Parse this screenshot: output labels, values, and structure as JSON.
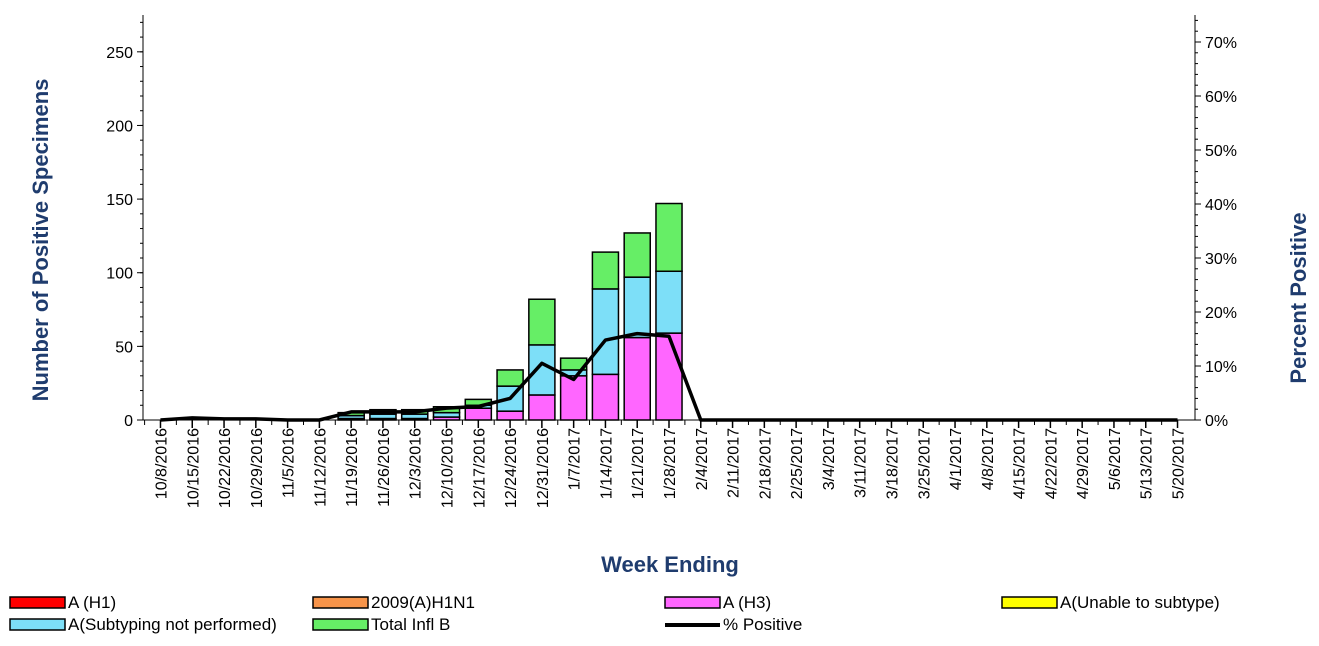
{
  "chart_data": {
    "type": "bar",
    "stacked": true,
    "xlabel": "Week Ending",
    "ylabel": "Number of  Positive Specimens",
    "y2label": "Percent Positive",
    "ylim": [
      0,
      275
    ],
    "yticks": [
      0,
      50,
      100,
      150,
      200,
      250
    ],
    "y2lim": [
      0,
      0.75
    ],
    "y2ticks": [
      "0%",
      "10%",
      "20%",
      "30%",
      "40%",
      "50%",
      "60%",
      "70%"
    ],
    "categories": [
      "10/8/2016",
      "10/15/2016",
      "10/22/2016",
      "10/29/2016",
      "11/5/2016",
      "11/12/2016",
      "11/19/2016",
      "11/26/2016",
      "12/3/2016",
      "12/10/2016",
      "12/17/2016",
      "12/24/2016",
      "12/31/2016",
      "1/7/2017",
      "1/14/2017",
      "1/21/2017",
      "1/28/2017",
      "2/4/2017",
      "2/11/2017",
      "2/18/2017",
      "2/25/2017",
      "3/4/2017",
      "3/11/2017",
      "3/18/2017",
      "3/25/2017",
      "4/1/2017",
      "4/8/2017",
      "4/15/2017",
      "4/22/2017",
      "4/29/2017",
      "5/6/2017",
      "5/13/2017",
      "5/20/2017"
    ],
    "series": [
      {
        "name": "A (H1)",
        "color": "#ff0000",
        "values": [
          0,
          0,
          0,
          0,
          0,
          0,
          0,
          0,
          0,
          0,
          0,
          0,
          0,
          0,
          0,
          0,
          0,
          null,
          null,
          null,
          null,
          null,
          null,
          null,
          null,
          null,
          null,
          null,
          null,
          null,
          null,
          null,
          null
        ]
      },
      {
        "name": "2009(A)H1N1",
        "color": "#f7944a",
        "values": [
          0,
          0,
          0,
          0,
          0,
          0,
          0,
          0,
          0,
          0,
          0,
          0,
          0,
          0,
          0,
          0,
          0,
          null,
          null,
          null,
          null,
          null,
          null,
          null,
          null,
          null,
          null,
          null,
          null,
          null,
          null,
          null,
          null
        ]
      },
      {
        "name": "A (H3)",
        "color": "#ff66ff",
        "values": [
          0,
          0,
          0,
          0,
          0,
          0,
          1,
          1,
          1,
          2,
          8,
          6,
          17,
          30,
          31,
          56,
          59,
          null,
          null,
          null,
          null,
          null,
          null,
          null,
          null,
          null,
          null,
          null,
          null,
          null,
          null,
          null,
          null
        ]
      },
      {
        "name": "A(Unable to subtype)",
        "color": "#ffff00",
        "values": [
          0,
          0,
          0,
          0,
          0,
          0,
          0,
          0,
          0,
          0,
          0,
          0,
          0,
          0,
          0,
          0,
          0,
          null,
          null,
          null,
          null,
          null,
          null,
          null,
          null,
          null,
          null,
          null,
          null,
          null,
          null,
          null,
          null
        ]
      },
      {
        "name": "A(Subtyping not performed)",
        "color": "#7ddff8",
        "values": [
          0,
          0,
          0,
          0,
          0,
          0,
          2,
          3,
          3,
          3,
          2,
          17,
          34,
          4,
          58,
          41,
          42,
          null,
          null,
          null,
          null,
          null,
          null,
          null,
          null,
          null,
          null,
          null,
          null,
          null,
          null,
          null,
          null
        ]
      },
      {
        "name": "Total Infl B",
        "color": "#66ee66",
        "values": [
          0,
          0,
          0,
          0,
          0,
          0,
          2,
          3,
          3,
          4,
          4,
          11,
          31,
          8,
          25,
          30,
          46,
          null,
          null,
          null,
          null,
          null,
          null,
          null,
          null,
          null,
          null,
          null,
          null,
          null,
          null,
          null,
          null
        ]
      }
    ],
    "line": {
      "name": "% Positive",
      "color": "#000000",
      "values": [
        0.0,
        0.004,
        0.002,
        0.002,
        0.0,
        0.0,
        0.015,
        0.015,
        0.015,
        0.022,
        0.025,
        0.04,
        0.105,
        0.075,
        0.148,
        0.16,
        0.155,
        0,
        0,
        0,
        0,
        0,
        0,
        0,
        0,
        0,
        0,
        0,
        0,
        0,
        0,
        0,
        0
      ]
    },
    "legend": {
      "position": "bottom"
    }
  }
}
